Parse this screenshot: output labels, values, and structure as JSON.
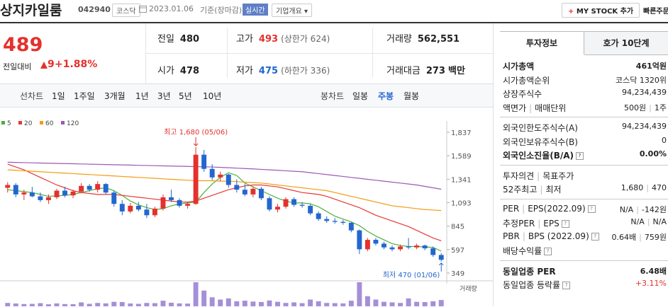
{
  "header": {
    "name": "상지카일룸",
    "code": "042940",
    "market": "코스닥",
    "date": "2023.01.06",
    "basis": "기준(장마감)",
    "realtime": "실시간",
    "overview": "기업개요",
    "mystock": "MY STOCK 추가",
    "quick_order": "빠른주문"
  },
  "quote": {
    "price": "489",
    "change_label": "전일대비",
    "change": "9",
    "change_rate": "+1.88%",
    "rows": [
      [
        {
          "label": "전일",
          "value": "480"
        },
        {
          "label": "고가",
          "value": "493",
          "note": "(상한가 624)"
        },
        {
          "label": "거래량",
          "value": "562,551"
        }
      ],
      [
        {
          "label": "시가",
          "value": "478"
        },
        {
          "label": "저가",
          "value": "475",
          "note": "(하한가 336)"
        },
        {
          "label": "거래대금",
          "value": "273",
          "unit": "백만"
        }
      ]
    ]
  },
  "periods": {
    "line_label": "선차트",
    "line": [
      "1일",
      "1주일",
      "3개월",
      "1년",
      "3년",
      "5년",
      "10년"
    ],
    "candle_label": "봉차트",
    "candle": [
      "일봉",
      "주봉",
      "월봉"
    ],
    "selected_candle": 1
  },
  "chart_data": {
    "type": "candlestick",
    "up_color": "#e4312d",
    "down_color": "#2366cf",
    "ylim": [
      349,
      1837
    ],
    "yticks": [
      {
        "value": 1837,
        "label": "1,837"
      },
      {
        "value": 1589,
        "label": "1,589"
      },
      {
        "value": 1341,
        "label": "1,341"
      },
      {
        "value": 1093,
        "label": "1,093"
      },
      845,
      597,
      349
    ],
    "high_label": "최고 1,680 (05/06)",
    "high_index": 23,
    "low_label": "최저 470 (01/06)",
    "low_index": 53,
    "volume_label": "거래량",
    "volume_color": "#a58fd8",
    "volume_lim": [
      0,
      3000000
    ],
    "ohlc": [
      [
        1250,
        1310,
        1200,
        1280
      ],
      [
        1280,
        1300,
        1150,
        1180
      ],
      [
        1180,
        1230,
        1120,
        1200
      ],
      [
        1200,
        1260,
        1150,
        1160
      ],
      [
        1160,
        1200,
        1100,
        1120
      ],
      [
        1120,
        1180,
        1080,
        1150
      ],
      [
        1150,
        1240,
        1130,
        1220
      ],
      [
        1220,
        1260,
        1150,
        1170
      ],
      [
        1170,
        1230,
        1140,
        1210
      ],
      [
        1210,
        1300,
        1190,
        1270
      ],
      [
        1270,
        1290,
        1210,
        1230
      ],
      [
        1230,
        1320,
        1200,
        1290
      ],
      [
        1290,
        1300,
        1180,
        1200
      ],
      [
        1200,
        1220,
        1050,
        1080
      ],
      [
        1080,
        1120,
        960,
        1000
      ],
      [
        1000,
        1090,
        980,
        1060
      ],
      [
        1060,
        1100,
        1000,
        1020
      ],
      [
        1020,
        1080,
        930,
        960
      ],
      [
        960,
        1050,
        940,
        1030
      ],
      [
        1030,
        1180,
        1010,
        1150
      ],
      [
        1150,
        1230,
        1100,
        1120
      ],
      [
        1120,
        1140,
        1040,
        1060
      ],
      [
        1060,
        1100,
        1030,
        1080
      ],
      [
        1080,
        1680,
        1070,
        1600
      ],
      [
        1600,
        1650,
        1420,
        1450
      ],
      [
        1450,
        1500,
        1330,
        1360
      ],
      [
        1360,
        1420,
        1320,
        1390
      ],
      [
        1390,
        1400,
        1250,
        1280
      ],
      [
        1280,
        1340,
        1200,
        1230
      ],
      [
        1230,
        1290,
        1160,
        1180
      ],
      [
        1180,
        1260,
        1150,
        1240
      ],
      [
        1240,
        1260,
        1120,
        1140
      ],
      [
        1140,
        1160,
        1000,
        1020
      ],
      [
        1020,
        1080,
        990,
        1050
      ],
      [
        1050,
        1150,
        1030,
        1130
      ],
      [
        1130,
        1150,
        1050,
        1070
      ],
      [
        1070,
        1100,
        1040,
        1060
      ],
      [
        1060,
        1080,
        960,
        980
      ],
      [
        980,
        1000,
        900,
        920
      ],
      [
        920,
        950,
        880,
        900
      ],
      [
        900,
        930,
        870,
        890
      ],
      [
        890,
        910,
        860,
        880
      ],
      [
        880,
        890,
        780,
        800
      ],
      [
        800,
        810,
        550,
        600
      ],
      [
        600,
        720,
        580,
        700
      ],
      [
        700,
        720,
        640,
        660
      ],
      [
        660,
        680,
        600,
        620
      ],
      [
        620,
        640,
        580,
        600
      ],
      [
        600,
        650,
        580,
        630
      ],
      [
        630,
        720,
        600,
        620
      ],
      [
        620,
        660,
        600,
        640
      ],
      [
        640,
        650,
        590,
        610
      ],
      [
        610,
        630,
        520,
        540
      ],
      [
        540,
        560,
        470,
        489
      ]
    ],
    "volume": [
      300000,
      250000,
      200000,
      220000,
      280000,
      180000,
      260000,
      200000,
      190000,
      350000,
      220000,
      300000,
      260000,
      400000,
      380000,
      250000,
      220000,
      300000,
      280000,
      500000,
      320000,
      260000,
      240000,
      2600000,
      1400000,
      800000,
      600000,
      700000,
      450000,
      500000,
      420000,
      380000,
      520000,
      400000,
      300000,
      350000,
      280000,
      600000,
      450000,
      300000,
      280000,
      260000,
      500000,
      2400000,
      900000,
      600000,
      400000,
      350000,
      300000,
      700000,
      400000,
      380000,
      450000,
      560000
    ],
    "series": [
      {
        "name": "5",
        "color": "#4caf3a",
        "values": [
          1230,
          1220,
          1210,
          1200,
          1180,
          1160,
          1165,
          1170,
          1180,
          1200,
          1220,
          1240,
          1250,
          1220,
          1170,
          1110,
          1070,
          1040,
          1020,
          1030,
          1060,
          1080,
          1090,
          1100,
          1200,
          1290,
          1360,
          1410,
          1380,
          1300,
          1260,
          1220,
          1180,
          1140,
          1110,
          1090,
          1090,
          1080,
          1050,
          1000,
          950,
          920,
          890,
          850,
          790,
          740,
          700,
          660,
          640,
          630,
          630,
          625,
          620,
          580
        ]
      },
      {
        "name": "20",
        "color": "#e53935",
        "values": [
          1500,
          1470,
          1440,
          1400,
          1360,
          1320,
          1280,
          1250,
          1220,
          1200,
          1190,
          1180,
          1180,
          1180,
          1170,
          1160,
          1150,
          1140,
          1130,
          1120,
          1110,
          1100,
          1100,
          1110,
          1140,
          1170,
          1200,
          1230,
          1250,
          1270,
          1280,
          1280,
          1270,
          1260,
          1240,
          1220,
          1200,
          1190,
          1180,
          1160,
          1130,
          1100,
          1070,
          1040,
          1000,
          960,
          930,
          900,
          870,
          840,
          800,
          760,
          720,
          690
        ]
      },
      {
        "name": "60",
        "color": "#f39c12",
        "values": [
          1440,
          1435,
          1430,
          1425,
          1420,
          1415,
          1410,
          1405,
          1400,
          1395,
          1390,
          1385,
          1380,
          1375,
          1370,
          1365,
          1360,
          1355,
          1350,
          1345,
          1340,
          1335,
          1330,
          1325,
          1325,
          1325,
          1320,
          1320,
          1315,
          1310,
          1305,
          1300,
          1290,
          1280,
          1270,
          1260,
          1250,
          1240,
          1230,
          1220,
          1200,
          1180,
          1160,
          1140,
          1120,
          1100,
          1080,
          1060,
          1050,
          1040,
          1030,
          1020,
          1015,
          1010
        ]
      },
      {
        "name": "120",
        "color": "#9b59b6",
        "values": [
          1520,
          1518,
          1516,
          1514,
          1512,
          1510,
          1508,
          1506,
          1504,
          1502,
          1500,
          1498,
          1496,
          1494,
          1492,
          1490,
          1488,
          1486,
          1484,
          1482,
          1480,
          1478,
          1476,
          1474,
          1472,
          1470,
          1466,
          1462,
          1458,
          1454,
          1450,
          1445,
          1440,
          1435,
          1430,
          1425,
          1420,
          1410,
          1400,
          1390,
          1380,
          1370,
          1360,
          1350,
          1340,
          1330,
          1320,
          1310,
          1300,
          1290,
          1280,
          1265,
          1250,
          1235
        ]
      }
    ]
  },
  "panel": {
    "tabs": [
      "투자정보",
      "호가 10단계"
    ],
    "selected_tab": 0,
    "groups": [
      [
        {
          "label": "시가총액",
          "value": "461억원",
          "bold": true
        },
        {
          "label": "시가총액순위",
          "value": "코스닥 1320위"
        },
        {
          "label": "상장주식수",
          "value": "94,234,439"
        },
        {
          "label": "액면가",
          "label2": "매매단위",
          "value": "500원",
          "value2": "1주"
        }
      ],
      [
        {
          "label": "외국인한도주식수(A)",
          "value": "94,234,439"
        },
        {
          "label": "외국인보유주식수(B)",
          "value": "0"
        },
        {
          "label": "외국인소진율(B/A)",
          "value": "0.00%",
          "bold": true,
          "help": true
        }
      ],
      [
        {
          "label": "투자의견",
          "label2": "목표주가"
        },
        {
          "label": "52주최고",
          "label2": "최저",
          "value": "1,680",
          "value2": "470"
        }
      ],
      [
        {
          "label": "PER",
          "label2": "EPS(2022.09)",
          "value": "N/A",
          "value2": "-142원",
          "help": true
        },
        {
          "label": "추정PER",
          "label2": "EPS",
          "value": "N/A",
          "value2": "N/A",
          "help": true
        },
        {
          "label": "PBR",
          "label2": "BPS (2022.09)",
          "value": "0.64배",
          "value2": "759원",
          "help": true
        },
        {
          "label": "배당수익률",
          "help": true
        }
      ],
      [
        {
          "label": "동일업종 PER",
          "value": "6.48배",
          "bold": true
        },
        {
          "label": "동일업종 등락률",
          "value": "+3.11%",
          "help": true,
          "up": true
        }
      ]
    ]
  }
}
